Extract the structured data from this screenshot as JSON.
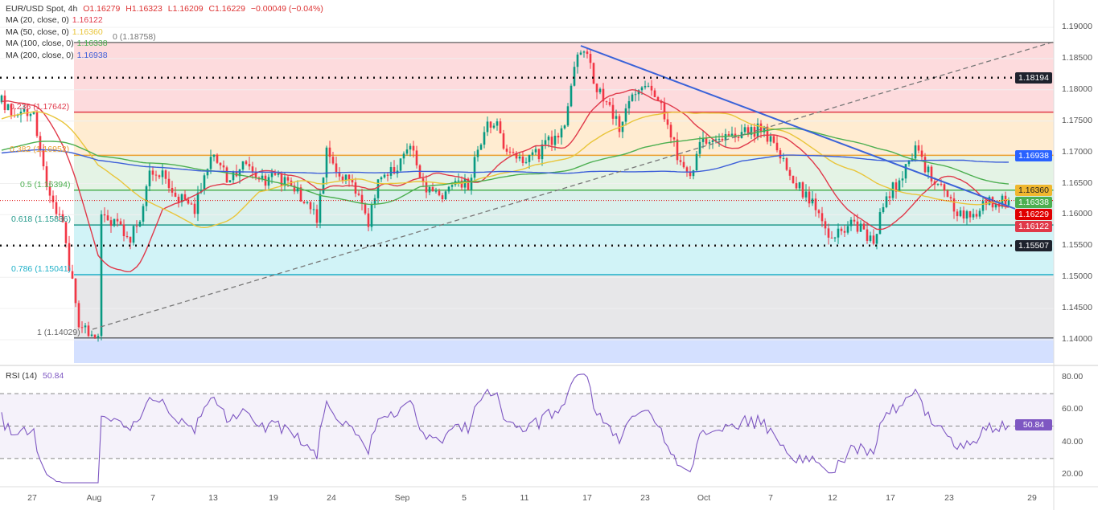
{
  "header": {
    "symbol": "EUR/USD Spot, 4h",
    "open": "O1.16279",
    "high": "H1.16323",
    "low": "L1.16209",
    "close": "C1.16229",
    "change": "−0.00049 (−0.04%)"
  },
  "ma_legend": [
    {
      "label": "MA (20, close, 0)",
      "value": "1.16122",
      "color": "#e0394a"
    },
    {
      "label": "MA (50, close, 0)",
      "value": "1.16360",
      "color": "#e9c53a"
    },
    {
      "label": "MA (100, close, 0)",
      "value": "1.16338",
      "color": "#4caf50"
    },
    {
      "label": "MA (200, close, 0)",
      "value": "1.16938",
      "color": "#3d5fd9"
    }
  ],
  "fib_labels": [
    {
      "text": "0 (1.18758)",
      "price": 1.18758,
      "color": "#777"
    },
    {
      "text": "0.236 (1.17642)",
      "price": 1.17642,
      "color": "#e0394a"
    },
    {
      "text": "0.382 (1.16952)",
      "price": 1.16952,
      "color": "#e9a030"
    },
    {
      "text": "0.5 (1.16394)",
      "price": 1.16394,
      "color": "#4caf50"
    },
    {
      "text": "0.618 (1.15836)",
      "price": 1.15836,
      "color": "#22998a"
    },
    {
      "text": "0.786 (1.15041)",
      "price": 1.15041,
      "color": "#1eb0c8"
    },
    {
      "text": "1 (1.14029)",
      "price": 1.14029,
      "color": "#666"
    }
  ],
  "price_ticks": [
    "1.19000",
    "1.18500",
    "1.18000",
    "1.17500",
    "1.17000",
    "1.16500",
    "1.16000",
    "1.15500",
    "1.15000",
    "1.14500",
    "1.14000"
  ],
  "badges": [
    {
      "text": "1.18194",
      "price": 1.18194,
      "color": "#1e222d"
    },
    {
      "text": "1.16938",
      "price": 1.16938,
      "color": "#2962ff"
    },
    {
      "text": "1.16360",
      "price": 1.1639,
      "color": "#f0b72f",
      "dark": true
    },
    {
      "text": "1.16338",
      "price": 1.16338,
      "color": "#4caf50"
    },
    {
      "text": "1.16229",
      "price": 1.16229,
      "color": "#e00000"
    },
    {
      "text": "1.16122",
      "price": 1.16122,
      "color": "#e0394a"
    },
    {
      "text": "1.15507",
      "price": 1.15507,
      "color": "#1e222d"
    }
  ],
  "rsi": {
    "label": "RSI (14)",
    "value": "50.84",
    "ticks": [
      "80.00",
      "60.00",
      "40.00",
      "20.00"
    ],
    "color": "#7e57c2"
  },
  "time_labels": [
    "27",
    "Aug",
    "7",
    "13",
    "19",
    "24",
    "Sep",
    "5",
    "11",
    "17",
    "23",
    "Oct",
    "7",
    "12",
    "17",
    "23",
    "29"
  ],
  "chart_data": {
    "type": "candlestick",
    "title": "EUR/USD Spot, 4h",
    "ylim": [
      1.137,
      1.1925
    ],
    "key_closes": [
      [
        0,
        1.178
      ],
      [
        3,
        1.177
      ],
      [
        10,
        1.176
      ],
      [
        12,
        1.17
      ],
      [
        15,
        1.163
      ],
      [
        19,
        1.158
      ],
      [
        21,
        1.152
      ],
      [
        24,
        1.143
      ],
      [
        27,
        1.1405
      ],
      [
        30,
        1.141
      ],
      [
        31,
        1.159
      ],
      [
        35,
        1.159
      ],
      [
        40,
        1.156
      ],
      [
        44,
        1.161
      ],
      [
        46,
        1.166
      ],
      [
        50,
        1.166
      ],
      [
        55,
        1.163
      ],
      [
        60,
        1.161
      ],
      [
        65,
        1.17
      ],
      [
        70,
        1.166
      ],
      [
        75,
        1.168
      ],
      [
        80,
        1.165
      ],
      [
        85,
        1.166
      ],
      [
        92,
        1.164
      ],
      [
        98,
        1.159
      ],
      [
        101,
        1.171
      ],
      [
        105,
        1.166
      ],
      [
        111,
        1.164
      ],
      [
        114,
        1.159
      ],
      [
        117,
        1.166
      ],
      [
        122,
        1.167
      ],
      [
        127,
        1.171
      ],
      [
        132,
        1.164
      ],
      [
        136,
        1.163
      ],
      [
        140,
        1.165
      ],
      [
        145,
        1.165
      ],
      [
        150,
        1.174
      ],
      [
        154,
        1.175
      ],
      [
        157,
        1.17
      ],
      [
        162,
        1.168
      ],
      [
        167,
        1.17
      ],
      [
        175,
        1.174
      ],
      [
        179,
        1.186
      ],
      [
        181,
        1.187
      ],
      [
        185,
        1.18
      ],
      [
        189,
        1.177
      ],
      [
        192,
        1.174
      ],
      [
        197,
        1.18
      ],
      [
        202,
        1.181
      ],
      [
        206,
        1.176
      ],
      [
        211,
        1.168
      ],
      [
        214,
        1.166
      ],
      [
        217,
        1.171
      ],
      [
        222,
        1.172
      ],
      [
        227,
        1.173
      ],
      [
        232,
        1.173
      ],
      [
        236,
        1.174
      ],
      [
        240,
        1.171
      ],
      [
        244,
        1.168
      ],
      [
        247,
        1.165
      ],
      [
        252,
        1.162
      ],
      [
        257,
        1.156
      ],
      [
        261,
        1.157
      ],
      [
        265,
        1.159
      ],
      [
        269,
        1.156
      ],
      [
        271,
        1.156
      ],
      [
        275,
        1.163
      ],
      [
        280,
        1.166
      ],
      [
        284,
        1.171
      ],
      [
        287,
        1.167
      ],
      [
        292,
        1.165
      ],
      [
        297,
        1.16
      ],
      [
        302,
        1.16
      ],
      [
        307,
        1.162
      ],
      [
        311,
        1.1625
      ],
      [
        313,
        1.16229
      ]
    ],
    "fib_levels": [
      0,
      0.236,
      0.382,
      0.5,
      0.618,
      0.786,
      1
    ],
    "horizontal_levels": [
      1.18194,
      1.15507
    ],
    "x_labels": [
      "27",
      "Aug",
      "7",
      "13",
      "19",
      "24",
      "Sep",
      "5",
      "11",
      "17",
      "23",
      "Oct",
      "7",
      "12",
      "17",
      "23",
      "29"
    ]
  }
}
